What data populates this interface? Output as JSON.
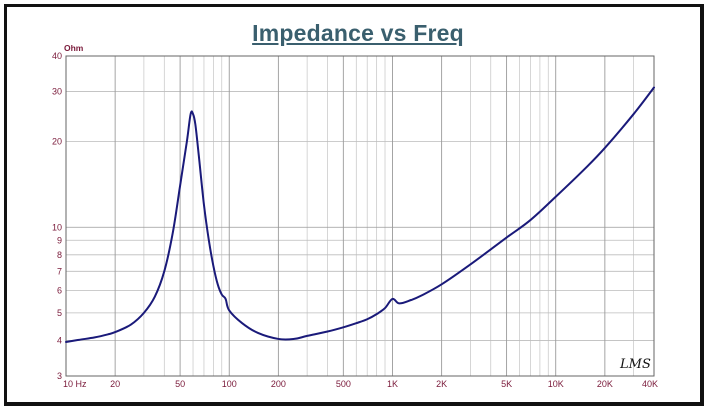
{
  "chart_data": {
    "type": "line",
    "title": "Impedance vs Freq",
    "ylabel": "Ohm",
    "xlabel": "",
    "xscale": "log",
    "yscale": "log",
    "xlim": [
      10,
      40000
    ],
    "ylim": [
      3,
      40
    ],
    "grid": true,
    "line_color": "#1a1a7a",
    "watermark": "LMS",
    "x_ticks": [
      {
        "value": 10,
        "label": "10 Hz"
      },
      {
        "value": 20,
        "label": "20"
      },
      {
        "value": 50,
        "label": "50"
      },
      {
        "value": 100,
        "label": "100"
      },
      {
        "value": 200,
        "label": "200"
      },
      {
        "value": 500,
        "label": "500"
      },
      {
        "value": 1000,
        "label": "1K"
      },
      {
        "value": 2000,
        "label": "2K"
      },
      {
        "value": 5000,
        "label": "5K"
      },
      {
        "value": 10000,
        "label": "10K"
      },
      {
        "value": 20000,
        "label": "20K"
      },
      {
        "value": 40000,
        "label": "40K"
      }
    ],
    "y_ticks": [
      {
        "value": 3,
        "label": "3"
      },
      {
        "value": 4,
        "label": "4"
      },
      {
        "value": 5,
        "label": "5"
      },
      {
        "value": 6,
        "label": "6"
      },
      {
        "value": 7,
        "label": "7"
      },
      {
        "value": 8,
        "label": "8"
      },
      {
        "value": 9,
        "label": "9"
      },
      {
        "value": 10,
        "label": "10"
      },
      {
        "value": 20,
        "label": "20"
      },
      {
        "value": 30,
        "label": "30"
      },
      {
        "value": 40,
        "label": "40"
      }
    ],
    "series": [
      {
        "points": [
          [
            10,
            3.95
          ],
          [
            12,
            4.02
          ],
          [
            15,
            4.1
          ],
          [
            18,
            4.2
          ],
          [
            20,
            4.28
          ],
          [
            25,
            4.55
          ],
          [
            30,
            5.0
          ],
          [
            35,
            5.7
          ],
          [
            40,
            7.0
          ],
          [
            45,
            9.5
          ],
          [
            50,
            14.0
          ],
          [
            55,
            20.0
          ],
          [
            58,
            25.0
          ],
          [
            60,
            25.0
          ],
          [
            62,
            23.0
          ],
          [
            65,
            18.0
          ],
          [
            70,
            12.0
          ],
          [
            75,
            9.0
          ],
          [
            80,
            7.3
          ],
          [
            85,
            6.3
          ],
          [
            90,
            5.8
          ],
          [
            95,
            5.6
          ],
          [
            100,
            5.1
          ],
          [
            120,
            4.6
          ],
          [
            150,
            4.25
          ],
          [
            200,
            4.05
          ],
          [
            250,
            4.05
          ],
          [
            300,
            4.15
          ],
          [
            400,
            4.3
          ],
          [
            500,
            4.45
          ],
          [
            600,
            4.6
          ],
          [
            700,
            4.75
          ],
          [
            800,
            4.95
          ],
          [
            900,
            5.2
          ],
          [
            1000,
            5.6
          ],
          [
            1100,
            5.4
          ],
          [
            1300,
            5.55
          ],
          [
            1500,
            5.75
          ],
          [
            2000,
            6.3
          ],
          [
            3000,
            7.4
          ],
          [
            5000,
            9.2
          ],
          [
            7000,
            10.6
          ],
          [
            10000,
            12.8
          ],
          [
            15000,
            16.0
          ],
          [
            20000,
            19.0
          ],
          [
            30000,
            25.0
          ],
          [
            40000,
            31.0
          ]
        ]
      }
    ]
  }
}
